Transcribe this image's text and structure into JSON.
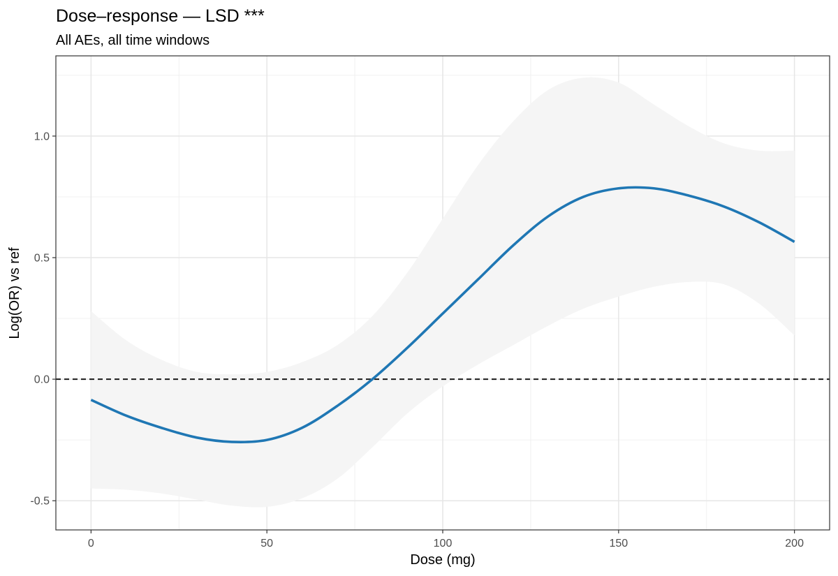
{
  "chart_data": {
    "type": "line",
    "title": "Dose–response — LSD ***",
    "subtitle": "All AEs, all time windows",
    "xlabel": "Dose (mg)",
    "ylabel": "Log(OR) vs ref",
    "xlim": [
      -10,
      210
    ],
    "ylim": [
      -0.62,
      1.33
    ],
    "x_ticks": [
      0,
      50,
      100,
      150,
      200
    ],
    "x_tick_labels": [
      "0",
      "50",
      "100",
      "150",
      "200"
    ],
    "y_ticks": [
      -0.5,
      0.0,
      0.5,
      1.0
    ],
    "y_tick_labels": [
      "-0.5",
      "0.0",
      "0.5",
      "1.0"
    ],
    "grid": true,
    "reference_line": {
      "y": 0,
      "style": "dashed"
    },
    "series": [
      {
        "line_color": "#1f77b4",
        "ribbon_color": "#f5f5f5",
        "x": [
          0,
          10,
          20,
          30,
          40,
          50,
          60,
          70,
          80,
          90,
          100,
          110,
          120,
          130,
          140,
          150,
          160,
          170,
          180,
          190,
          200
        ],
        "y": [
          -0.085,
          -0.15,
          -0.2,
          -0.24,
          -0.258,
          -0.25,
          -0.2,
          -0.11,
          0.0,
          0.13,
          0.27,
          0.41,
          0.55,
          0.67,
          0.75,
          0.785,
          0.785,
          0.755,
          0.71,
          0.645,
          0.565
        ],
        "lower": [
          -0.45,
          -0.455,
          -0.47,
          -0.495,
          -0.52,
          -0.525,
          -0.49,
          -0.41,
          -0.28,
          -0.14,
          -0.03,
          0.06,
          0.14,
          0.22,
          0.29,
          0.34,
          0.38,
          0.4,
          0.39,
          0.31,
          0.18
        ],
        "upper": [
          0.28,
          0.16,
          0.08,
          0.03,
          0.02,
          0.03,
          0.07,
          0.14,
          0.26,
          0.44,
          0.66,
          0.88,
          1.06,
          1.19,
          1.24,
          1.22,
          1.13,
          1.04,
          0.97,
          0.94,
          0.94
        ]
      }
    ]
  }
}
